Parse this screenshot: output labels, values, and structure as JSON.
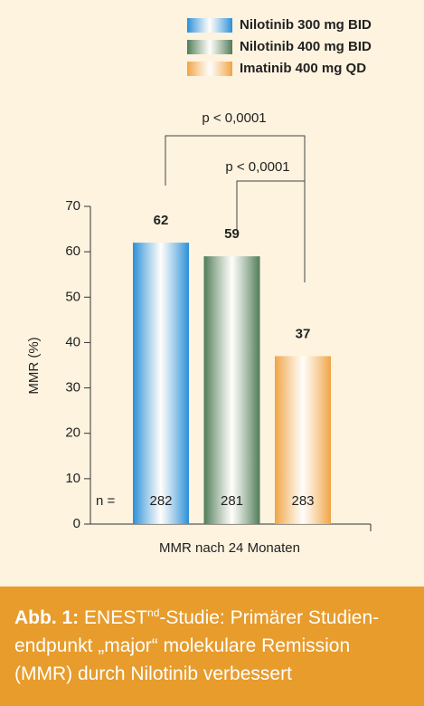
{
  "chart_data": {
    "type": "bar",
    "categories": [
      "MMR nach 24 Monaten"
    ],
    "series": [
      {
        "name": "Nilotinib 300 mg BID",
        "color": "#2a8fd8",
        "values": [
          62
        ],
        "n": [
          282
        ]
      },
      {
        "name": "Nilotinib 400 mg BID",
        "color": "#4f7c57",
        "values": [
          59
        ],
        "n": [
          281
        ]
      },
      {
        "name": "Imatinib 400 mg QD",
        "color": "#f0a444",
        "values": [
          37
        ],
        "n": [
          283
        ]
      }
    ],
    "n_label": "n =",
    "ylabel": "MMR (%)",
    "ylim": [
      0,
      70
    ],
    "yticks": [
      0,
      10,
      20,
      30,
      40,
      50,
      60,
      70
    ],
    "annotations": [
      "p < 0,0001",
      "p < 0,0001"
    ]
  },
  "caption": {
    "label": "Abb. 1:",
    "study": "ENEST",
    "superscript": "nd",
    "lines": [
      "-Studie: Primärer Studien-",
      "endpunkt „major“ molekulare Remission",
      "(MMR) durch Nilotinib verbessert"
    ]
  }
}
